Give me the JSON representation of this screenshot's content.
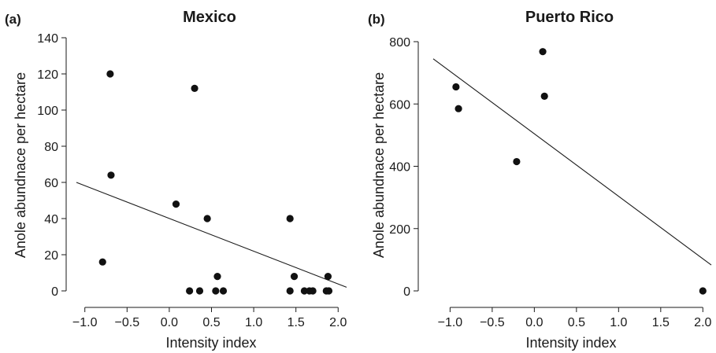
{
  "chart_data": [
    {
      "type": "scatter",
      "panel_label": "(a)",
      "title": "Mexico",
      "xlabel": "Intensity index",
      "ylabel": "Anole abundnace per hectare",
      "xlim": [
        -1.1,
        2.1
      ],
      "ylim": [
        0,
        140
      ],
      "x_ticks": [
        -1.0,
        -0.5,
        0.0,
        0.5,
        1.0,
        1.5,
        2.0
      ],
      "x_tick_labels": [
        "−1.0",
        "−0.5",
        "0.0",
        "0.5",
        "1.0",
        "1.5",
        "2.0"
      ],
      "y_ticks": [
        0,
        20,
        40,
        60,
        80,
        100,
        120,
        140
      ],
      "y_tick_labels": [
        "0",
        "20",
        "40",
        "60",
        "80",
        "100",
        "120",
        "140"
      ],
      "points": [
        {
          "x": -0.79,
          "y": 16
        },
        {
          "x": -0.7,
          "y": 120
        },
        {
          "x": -0.69,
          "y": 64
        },
        {
          "x": 0.08,
          "y": 48
        },
        {
          "x": 0.24,
          "y": 0
        },
        {
          "x": 0.3,
          "y": 112
        },
        {
          "x": 0.36,
          "y": 0
        },
        {
          "x": 0.45,
          "y": 40
        },
        {
          "x": 0.55,
          "y": 0
        },
        {
          "x": 0.57,
          "y": 8
        },
        {
          "x": 0.64,
          "y": 0
        },
        {
          "x": 1.43,
          "y": 40
        },
        {
          "x": 1.43,
          "y": 0
        },
        {
          "x": 1.48,
          "y": 8
        },
        {
          "x": 1.6,
          "y": 0
        },
        {
          "x": 1.66,
          "y": 0
        },
        {
          "x": 1.7,
          "y": 0
        },
        {
          "x": 1.86,
          "y": 0
        },
        {
          "x": 1.88,
          "y": 8
        },
        {
          "x": 1.89,
          "y": 0
        }
      ],
      "fit_line": {
        "x": [
          -1.1,
          2.1
        ],
        "y": [
          60,
          2
        ]
      }
    },
    {
      "type": "scatter",
      "panel_label": "(b)",
      "title": "Puerto Rico",
      "xlabel": "Intensity index",
      "ylabel": "Anole abundnace per hectare",
      "xlim": [
        -1.2,
        2.1
      ],
      "ylim": [
        0,
        800
      ],
      "x_ticks": [
        -1.0,
        -0.5,
        0.0,
        0.5,
        1.0,
        1.5,
        2.0
      ],
      "x_tick_labels": [
        "−1.0",
        "−0.5",
        "0.0",
        "0.5",
        "1.0",
        "1.5",
        "2.0"
      ],
      "y_ticks": [
        0,
        200,
        400,
        600,
        800
      ],
      "y_tick_labels": [
        "0",
        "200",
        "400",
        "600",
        "800"
      ],
      "points": [
        {
          "x": -0.93,
          "y": 655
        },
        {
          "x": -0.9,
          "y": 585
        },
        {
          "x": -0.21,
          "y": 415
        },
        {
          "x": 0.1,
          "y": 768
        },
        {
          "x": 0.12,
          "y": 625
        },
        {
          "x": 2.0,
          "y": 0
        }
      ],
      "fit_line": {
        "x": [
          -1.2,
          2.1
        ],
        "y": [
          745,
          83
        ]
      }
    }
  ]
}
